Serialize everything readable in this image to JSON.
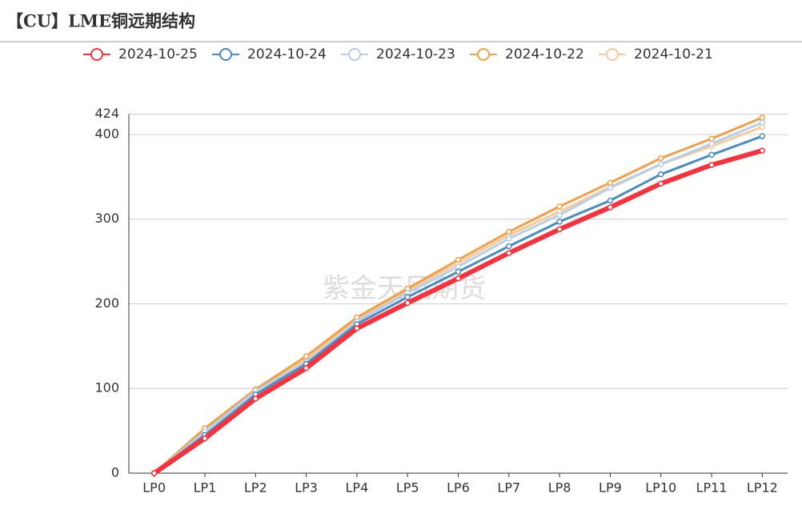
{
  "chart_data": {
    "type": "line",
    "title": "【CU】LME铜远期结构",
    "watermark": "紫金天风期货",
    "categories": [
      "LP0",
      "LP1",
      "LP2",
      "LP3",
      "LP4",
      "LP5",
      "LP6",
      "LP7",
      "LP8",
      "LP9",
      "LP10",
      "LP11",
      "LP12"
    ],
    "series": [
      {
        "name": "2024-10-25",
        "color": "#f5333f",
        "values": [
          0,
          41,
          88,
          124,
          171,
          201,
          230,
          260,
          288,
          314,
          342,
          364,
          381
        ]
      },
      {
        "name": "2024-10-24",
        "color": "#4a8cbf",
        "values": [
          0,
          45,
          93,
          129,
          176,
          208,
          238,
          268,
          297,
          322,
          353,
          376,
          398
        ]
      },
      {
        "name": "2024-10-23",
        "color": "#b9cde6",
        "values": [
          0,
          49,
          97,
          131,
          179,
          213,
          244,
          277,
          305,
          337,
          365,
          389,
          414
        ]
      },
      {
        "name": "2024-10-22",
        "color": "#f0a04b",
        "values": [
          0,
          53,
          99,
          138,
          184,
          218,
          252,
          285,
          315,
          343,
          372,
          395,
          420
        ]
      },
      {
        "name": "2024-10-21",
        "color": "#f8c99a",
        "values": [
          0,
          52,
          98,
          134,
          181,
          216,
          248,
          281,
          309,
          338,
          365,
          386,
          409
        ]
      }
    ],
    "ylim": [
      0,
      424
    ],
    "yticks": [
      0,
      100,
      200,
      300,
      400,
      424
    ],
    "grid": true
  }
}
